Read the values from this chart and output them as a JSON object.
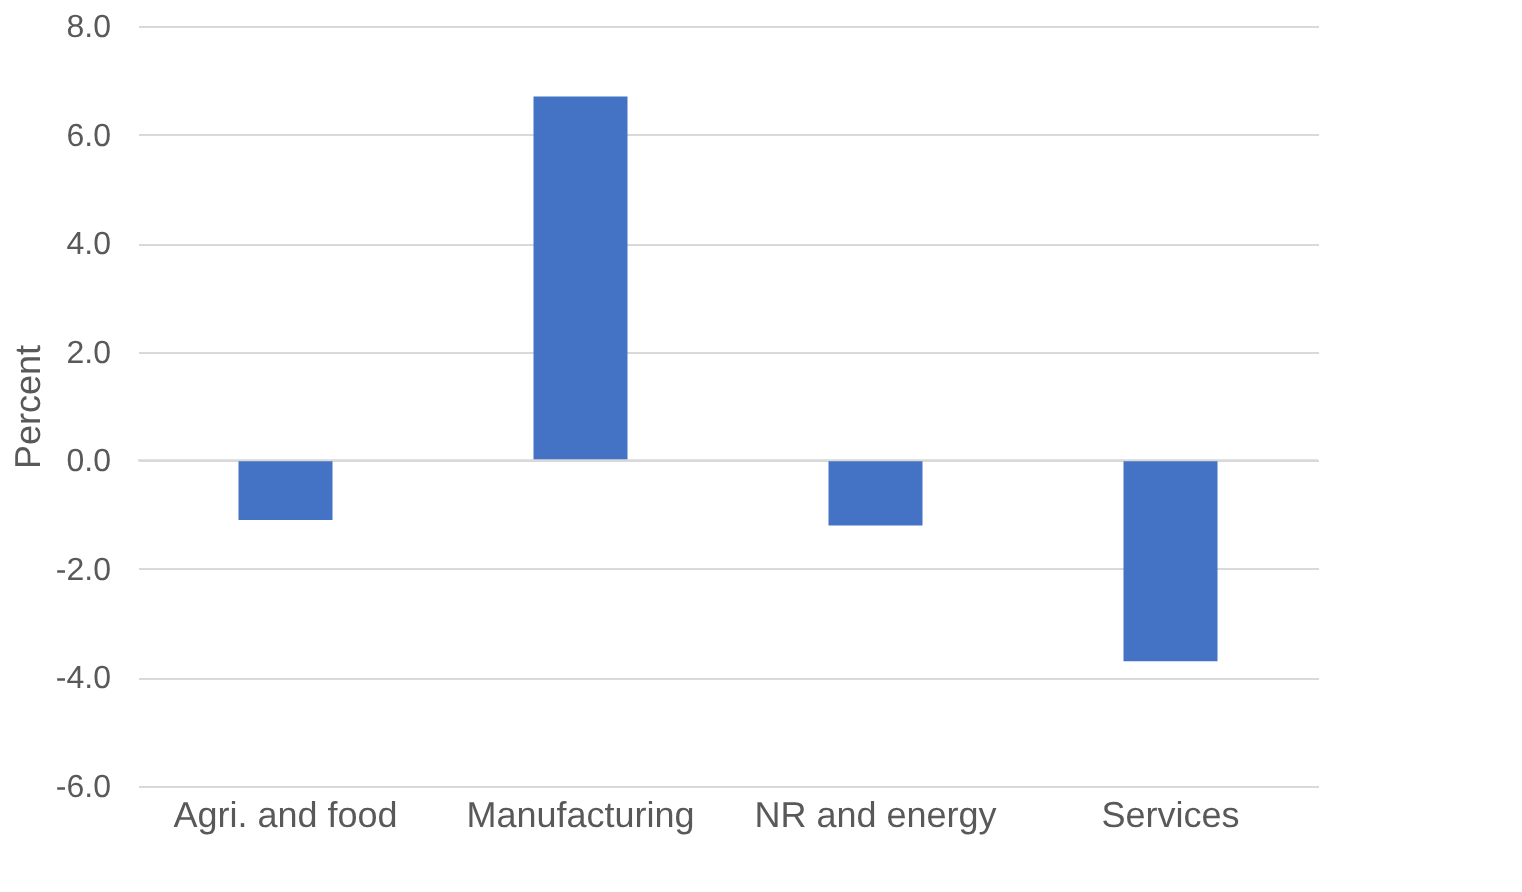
{
  "chart_data": {
    "type": "bar",
    "ylabel": "Percent",
    "categories": [
      "Agri. and food",
      "Manufacturing",
      "NR and energy",
      "Services"
    ],
    "values": [
      -1.1,
      6.7,
      -1.2,
      -3.7
    ],
    "color": "#4472c4",
    "ylim": [
      -6.0,
      8.0
    ],
    "yticks": [
      {
        "value": -6.0,
        "label": "-6.0"
      },
      {
        "value": -4.0,
        "label": "-4.0"
      },
      {
        "value": -2.0,
        "label": "-2.0"
      },
      {
        "value": 0.0,
        "label": "0.0"
      },
      {
        "value": 2.0,
        "label": "2.0"
      },
      {
        "value": 4.0,
        "label": "4.0"
      },
      {
        "value": 6.0,
        "label": "6.0"
      },
      {
        "value": 8.0,
        "label": "8.0"
      }
    ],
    "grid": "y"
  }
}
